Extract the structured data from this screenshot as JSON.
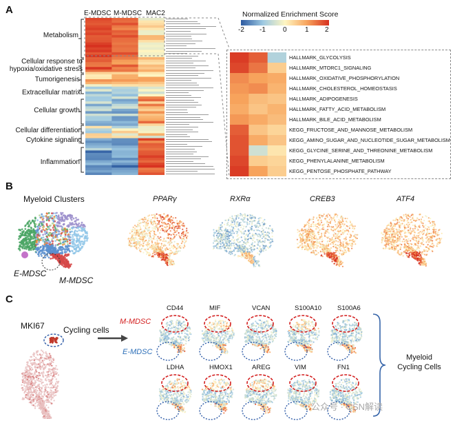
{
  "panelA": {
    "letter": "A",
    "columns": [
      "E-MDSC",
      "M-MDSC",
      "MAC2"
    ],
    "categories": [
      "Metabolism",
      "Cellular response to hypoxia/oxidative stress",
      "Tumorigenesis",
      "Extracellular matrix",
      "Cellular growth",
      "Cellular differentiation",
      "Cytokine signaling",
      "Inflammation"
    ],
    "legend": {
      "title": "Normalized Enrichment Score",
      "ticks": [
        "-2",
        "-1",
        "0",
        "1",
        "2"
      ],
      "colors": [
        "#2c5aa0",
        "#9ec9e2",
        "#fff6c2",
        "#f7a35c",
        "#d7301f"
      ]
    },
    "zoom_labels": [
      "HALLMARK_GLYCOLYSIS",
      "HALLMARK_MTORC1_SIGNALING",
      "HALLMARK_OXIDATIVE_PHOSPHORYLATION",
      "HALLMARK_CHOLESTEROL_HOMEOSTASIS",
      "HALLMARK_ADIPOGENESIS",
      "HALLMARK_FATTY_ACID_METABOLISM",
      "HALLMARK_BILE_ACID_METABOLISM",
      "KEGG_FRUCTOSE_AND_MANNOSE_METABOLISM",
      "KEGG_AMINO_SUGAR_AND_NUCLEOTIDE_SUGAR_METABOLISM",
      "KEGG_GLYCINE_SERINE_AND_THREONINE_METABOLISM",
      "KEGG_PHENYLALANINE_METABOLISM",
      "KEGG_PENTOSE_PHOSPHATE_PATHWAY"
    ]
  },
  "panelB": {
    "letter": "B",
    "cluster_title": "Myeloid Clusters",
    "gene_titles": [
      "PPARγ",
      "RXRα",
      "CREB3",
      "ATF4"
    ],
    "label_edsc": "E-MDSC",
    "label_mdsc": "M-MDSC"
  },
  "panelC": {
    "letter": "C",
    "mki67": "MKI67",
    "cycling": "Cycling cells",
    "label_mmdsc": "M-MDSC",
    "label_emdsc": "E-MDSC",
    "genes_row1": [
      "CD44",
      "MIF",
      "VCAN",
      "S100A10",
      "S100A6"
    ],
    "genes_row2": [
      "LDHA",
      "HMOX1",
      "AREG",
      "VIM",
      "FN1"
    ],
    "side_label_1": "Myeloid",
    "side_label_2": "Cycling Cells"
  },
  "watermark": "公众号 · CSN解读"
}
